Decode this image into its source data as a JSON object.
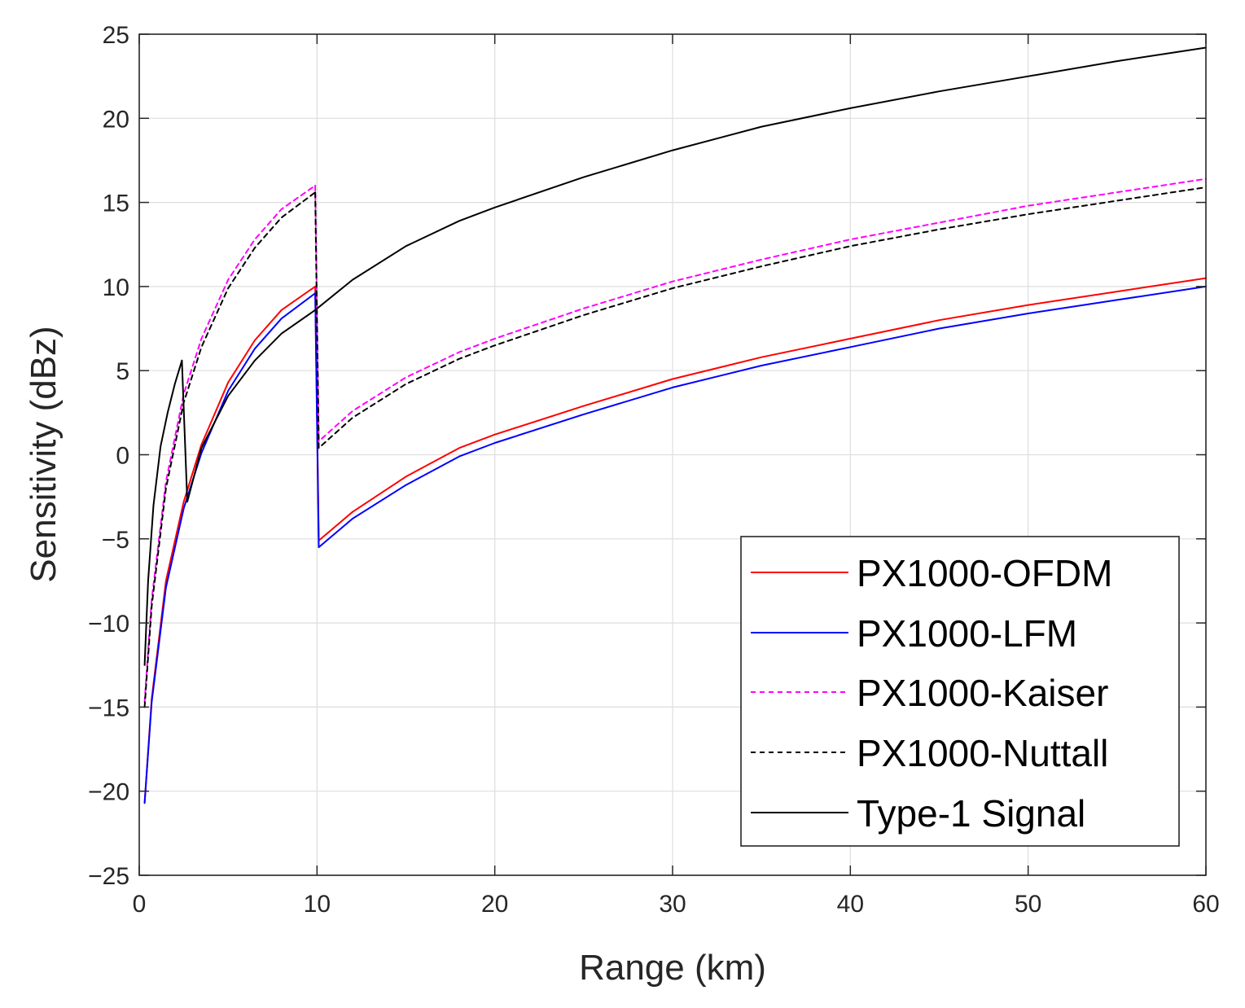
{
  "chart_data": {
    "type": "line",
    "title": "",
    "xlabel": "Range (km)",
    "ylabel": "Sensitivity (dBz)",
    "xlim": [
      0,
      60
    ],
    "ylim": [
      -25,
      25
    ],
    "xticks": [
      0,
      10,
      20,
      30,
      40,
      50,
      60
    ],
    "yticks": [
      -25,
      -20,
      -15,
      -10,
      -5,
      0,
      5,
      10,
      15,
      20,
      25
    ],
    "xtick_labels": [
      "0",
      "10",
      "20",
      "30",
      "40",
      "50",
      "60"
    ],
    "ytick_labels": [
      "−25",
      "−20",
      "−15",
      "−10",
      "−5",
      "0",
      "5",
      "10",
      "15",
      "20",
      "25"
    ],
    "grid": true,
    "legend_position": "bottom-right",
    "series": [
      {
        "name": "PX1000-OFDM",
        "color": "#ff0000",
        "dash": "solid",
        "segments": [
          {
            "x": [
              0.3,
              0.7,
              1.5,
              2.5,
              3.5,
              5,
              6.5,
              8,
              9.9
            ],
            "y": [
              -20.7,
              -14.5,
              -7.5,
              -2.8,
              0.6,
              4.3,
              6.8,
              8.6,
              10.0
            ]
          },
          {
            "x": [
              9.9,
              10.1,
              12,
              15,
              18,
              20,
              25,
              30,
              35,
              40,
              45,
              50,
              55,
              60
            ],
            "y": [
              10.0,
              -5.1,
              -3.4,
              -1.3,
              0.4,
              1.2,
              2.9,
              4.5,
              5.8,
              6.9,
              8.0,
              8.9,
              9.7,
              10.5
            ]
          }
        ]
      },
      {
        "name": "PX1000-LFM",
        "color": "#0000ff",
        "dash": "solid",
        "segments": [
          {
            "x": [
              0.3,
              0.7,
              1.5,
              2.5,
              3.5,
              5,
              6.5,
              8,
              9.9
            ],
            "y": [
              -20.7,
              -14.7,
              -7.9,
              -3.2,
              0.1,
              3.8,
              6.3,
              8.1,
              9.6
            ]
          },
          {
            "x": [
              9.9,
              10.1,
              12,
              15,
              18,
              20,
              25,
              30,
              35,
              40,
              45,
              50,
              55,
              60
            ],
            "y": [
              9.6,
              -5.5,
              -3.8,
              -1.8,
              -0.1,
              0.7,
              2.4,
              4.0,
              5.3,
              6.4,
              7.5,
              8.4,
              9.2,
              10.0
            ]
          }
        ]
      },
      {
        "name": "PX1000-Kaiser",
        "color": "#ff00ff",
        "dash": "dashed",
        "segments": [
          {
            "x": [
              0.3,
              0.7,
              1.5,
              2.5,
              3.5,
              5,
              6.5,
              8,
              9.9
            ],
            "y": [
              -14.7,
              -8.6,
              -1.6,
              3.6,
              6.9,
              10.4,
              12.8,
              14.6,
              16.0
            ]
          },
          {
            "x": [
              9.9,
              10.1,
              12,
              15,
              18,
              20,
              25,
              30,
              35,
              40,
              45,
              50,
              55,
              60
            ],
            "y": [
              16.0,
              0.8,
              2.6,
              4.6,
              6.1,
              6.9,
              8.7,
              10.3,
              11.6,
              12.8,
              13.8,
              14.8,
              15.6,
              16.4
            ]
          }
        ]
      },
      {
        "name": "PX1000-Nuttall",
        "color": "#000000",
        "dash": "dashed",
        "segments": [
          {
            "x": [
              0.3,
              0.7,
              1.5,
              2.5,
              3.5,
              5,
              6.5,
              8,
              9.9
            ],
            "y": [
              -15.0,
              -9.0,
              -2.0,
              3.1,
              6.4,
              9.9,
              12.3,
              14.1,
              15.6
            ]
          },
          {
            "x": [
              9.9,
              10.1,
              12,
              15,
              18,
              20,
              25,
              30,
              35,
              40,
              45,
              50,
              55,
              60
            ],
            "y": [
              15.6,
              0.4,
              2.2,
              4.2,
              5.7,
              6.5,
              8.3,
              9.9,
              11.2,
              12.4,
              13.4,
              14.3,
              15.1,
              15.9
            ]
          }
        ]
      },
      {
        "name": "Type-1 Signal",
        "color": "#000000",
        "dash": "solid",
        "segments": [
          {
            "x": [
              0.3,
              0.5,
              0.8,
              1.2,
              1.6,
              2.0,
              2.4
            ],
            "y": [
              -12.5,
              -7.5,
              -3.0,
              0.5,
              2.5,
              4.2,
              5.6
            ]
          },
          {
            "x": [
              2.4,
              2.7,
              3.5,
              5,
              6.5,
              8,
              9.9
            ],
            "y": [
              5.6,
              -2.8,
              0.4,
              3.5,
              5.6,
              7.2,
              8.6
            ]
          },
          {
            "x": [
              9.9,
              12,
              15,
              18,
              20,
              25,
              30,
              35,
              40,
              45,
              50,
              55,
              60
            ],
            "y": [
              8.6,
              10.4,
              12.4,
              13.9,
              14.7,
              16.5,
              18.1,
              19.5,
              20.6,
              21.6,
              22.5,
              23.4,
              24.2
            ]
          }
        ]
      }
    ]
  }
}
